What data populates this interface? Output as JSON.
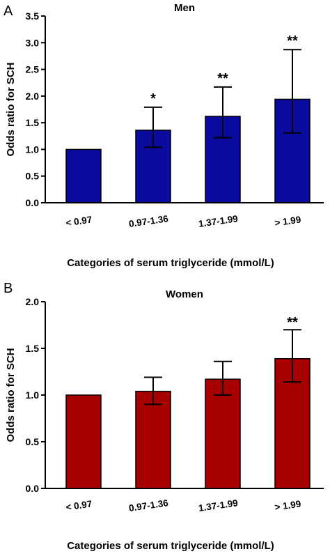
{
  "chart_data": [
    {
      "type": "bar",
      "panel": "A",
      "title": "Men",
      "ylabel": "Odds ratio for SCH",
      "xlabel": "Categories of serum triglyceride (mmol/L)",
      "categories": [
        "< 0.97",
        "0.97-1.36",
        "1.37-1.99",
        "> 1.99"
      ],
      "values": [
        1.0,
        1.36,
        1.62,
        1.94
      ],
      "ci_low": [
        1.0,
        1.04,
        1.22,
        1.31
      ],
      "ci_high": [
        1.0,
        1.79,
        2.17,
        2.87
      ],
      "significance": [
        "",
        "*",
        "**",
        "**"
      ],
      "ylim": [
        0,
        3.5
      ],
      "yticks": [
        "0.0",
        "0.5",
        "1.0",
        "1.5",
        "2.0",
        "2.5",
        "3.0",
        "3.5"
      ],
      "bar_color": "#0a0a9e",
      "grid": false
    },
    {
      "type": "bar",
      "panel": "B",
      "title": "Women",
      "ylabel": "Odds ratio for SCH",
      "xlabel": "Categories of serum triglyceride (mmol/L)",
      "categories": [
        "< 0.97",
        "0.97-1.36",
        "1.37-1.99",
        "> 1.99"
      ],
      "values": [
        1.0,
        1.04,
        1.17,
        1.39
      ],
      "ci_low": [
        1.0,
        0.9,
        1.0,
        1.14
      ],
      "ci_high": [
        1.0,
        1.19,
        1.36,
        1.7
      ],
      "significance": [
        "",
        "",
        "",
        "**"
      ],
      "ylim": [
        0,
        2.0
      ],
      "yticks": [
        "0.0",
        "0.5",
        "1.0",
        "1.5",
        "2.0"
      ],
      "bar_color": "#a80000",
      "grid": false
    }
  ]
}
